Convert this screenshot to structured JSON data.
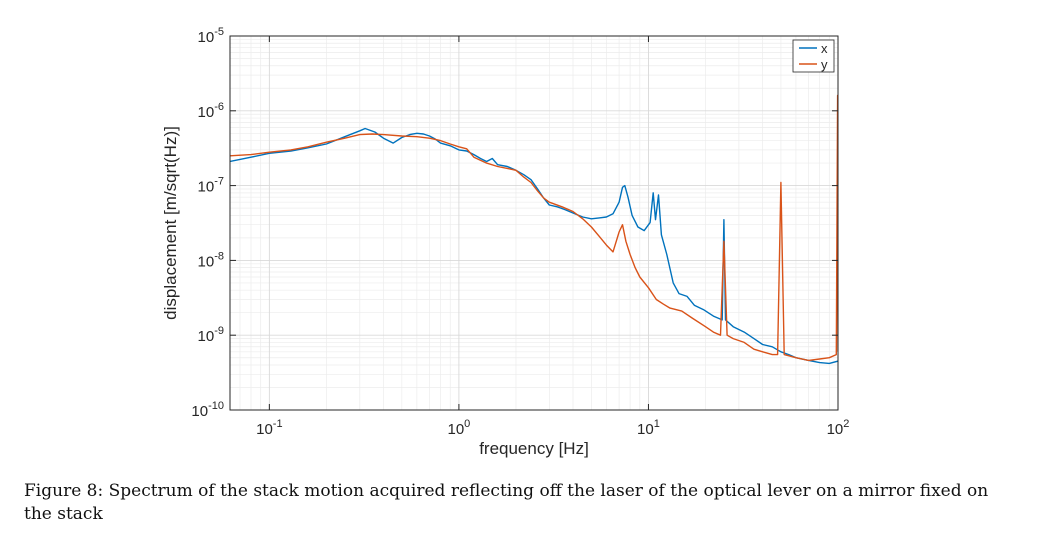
{
  "chart_data": {
    "type": "line",
    "title": "",
    "xlabel": "frequency [Hz]",
    "ylabel": "displacement [m/sqrt(Hz)]",
    "xscale": "log",
    "yscale": "log",
    "xlim": [
      0.062,
      100
    ],
    "ylim": [
      1e-10,
      1e-05
    ],
    "x_ticks": [
      0.1,
      1,
      10,
      100
    ],
    "x_tick_labels": [
      {
        "base": "10",
        "exp": "-1"
      },
      {
        "base": "10",
        "exp": "0"
      },
      {
        "base": "10",
        "exp": "1"
      },
      {
        "base": "10",
        "exp": "2"
      }
    ],
    "y_ticks": [
      1e-10,
      1e-09,
      1e-08,
      1e-07,
      1e-06,
      1e-05
    ],
    "y_tick_labels": [
      {
        "base": "10",
        "exp": "-10"
      },
      {
        "base": "10",
        "exp": "-9"
      },
      {
        "base": "10",
        "exp": "-8"
      },
      {
        "base": "10",
        "exp": "-7"
      },
      {
        "base": "10",
        "exp": "-6"
      },
      {
        "base": "10",
        "exp": "-5"
      }
    ],
    "grid": true,
    "legend_position": "top-right",
    "series": [
      {
        "name": "x",
        "color": "#0072BD",
        "points": [
          [
            0.062,
            2.1e-07
          ],
          [
            0.08,
            2.4e-07
          ],
          [
            0.1,
            2.7e-07
          ],
          [
            0.13,
            2.9e-07
          ],
          [
            0.16,
            3.2e-07
          ],
          [
            0.2,
            3.6e-07
          ],
          [
            0.25,
            4.5e-07
          ],
          [
            0.3,
            5.4e-07
          ],
          [
            0.32,
            5.8e-07
          ],
          [
            0.36,
            5.2e-07
          ],
          [
            0.4,
            4.3e-07
          ],
          [
            0.45,
            3.7e-07
          ],
          [
            0.5,
            4.4e-07
          ],
          [
            0.55,
            4.8e-07
          ],
          [
            0.6,
            5e-07
          ],
          [
            0.65,
            4.9e-07
          ],
          [
            0.7,
            4.6e-07
          ],
          [
            0.75,
            4.2e-07
          ],
          [
            0.8,
            3.7e-07
          ],
          [
            0.9,
            3.4e-07
          ],
          [
            1.0,
            3e-07
          ],
          [
            1.1,
            2.9e-07
          ],
          [
            1.2,
            2.6e-07
          ],
          [
            1.3,
            2.3e-07
          ],
          [
            1.4,
            2.1e-07
          ],
          [
            1.5,
            2.3e-07
          ],
          [
            1.6,
            1.9e-07
          ],
          [
            1.8,
            1.8e-07
          ],
          [
            2.0,
            1.6e-07
          ],
          [
            2.2,
            1.4e-07
          ],
          [
            2.4,
            1.2e-07
          ],
          [
            2.6,
            9e-08
          ],
          [
            2.8,
            6.8e-08
          ],
          [
            3.0,
            5.5e-08
          ],
          [
            3.3,
            5.2e-08
          ],
          [
            3.6,
            4.8e-08
          ],
          [
            4.0,
            4.3e-08
          ],
          [
            4.5,
            3.8e-08
          ],
          [
            5.0,
            3.6e-08
          ],
          [
            5.5,
            3.7e-08
          ],
          [
            6.0,
            3.8e-08
          ],
          [
            6.5,
            4.2e-08
          ],
          [
            7.0,
            6e-08
          ],
          [
            7.3,
            9.5e-08
          ],
          [
            7.5,
            1e-07
          ],
          [
            7.8,
            7e-08
          ],
          [
            8.2,
            4e-08
          ],
          [
            8.8,
            2.8e-08
          ],
          [
            9.5,
            2.5e-08
          ],
          [
            10.2,
            3.2e-08
          ],
          [
            10.6,
            8e-08
          ],
          [
            10.9,
            3.5e-08
          ],
          [
            11.3,
            7.5e-08
          ],
          [
            11.7,
            2.2e-08
          ],
          [
            12.5,
            1.2e-08
          ],
          [
            13.5,
            5e-09
          ],
          [
            14.5,
            3.6e-09
          ],
          [
            16,
            3.3e-09
          ],
          [
            17.5,
            2.5e-09
          ],
          [
            19.5,
            2.2e-09
          ],
          [
            22,
            1.8e-09
          ],
          [
            24.5,
            1.6e-09
          ],
          [
            25,
            3.5e-08
          ],
          [
            25.5,
            1.6e-09
          ],
          [
            28,
            1.3e-09
          ],
          [
            32,
            1.1e-09
          ],
          [
            36,
            9e-10
          ],
          [
            40,
            7.5e-10
          ],
          [
            45,
            7e-10
          ],
          [
            50,
            6e-10
          ],
          [
            55,
            5.5e-10
          ],
          [
            60,
            5e-10
          ],
          [
            70,
            4.6e-10
          ],
          [
            80,
            4.3e-10
          ],
          [
            90,
            4.2e-10
          ],
          [
            100,
            4.5e-10
          ]
        ]
      },
      {
        "name": "y",
        "color": "#D95319",
        "points": [
          [
            0.062,
            2.5e-07
          ],
          [
            0.08,
            2.6e-07
          ],
          [
            0.1,
            2.8e-07
          ],
          [
            0.13,
            3e-07
          ],
          [
            0.16,
            3.3e-07
          ],
          [
            0.2,
            3.8e-07
          ],
          [
            0.25,
            4.3e-07
          ],
          [
            0.3,
            4.8e-07
          ],
          [
            0.35,
            4.9e-07
          ],
          [
            0.4,
            4.8e-07
          ],
          [
            0.5,
            4.6e-07
          ],
          [
            0.6,
            4.5e-07
          ],
          [
            0.7,
            4.3e-07
          ],
          [
            0.8,
            4e-07
          ],
          [
            0.9,
            3.6e-07
          ],
          [
            1.0,
            3.3e-07
          ],
          [
            1.1,
            3.1e-07
          ],
          [
            1.2,
            2.4e-07
          ],
          [
            1.4,
            2e-07
          ],
          [
            1.6,
            1.8e-07
          ],
          [
            1.8,
            1.7e-07
          ],
          [
            2.0,
            1.6e-07
          ],
          [
            2.2,
            1.3e-07
          ],
          [
            2.4,
            1.1e-07
          ],
          [
            2.6,
            8.5e-08
          ],
          [
            2.8,
            6.8e-08
          ],
          [
            3.0,
            6e-08
          ],
          [
            3.5,
            5.2e-08
          ],
          [
            4.0,
            4.5e-08
          ],
          [
            4.5,
            3.6e-08
          ],
          [
            5.0,
            2.8e-08
          ],
          [
            5.5,
            2.1e-08
          ],
          [
            6.0,
            1.6e-08
          ],
          [
            6.5,
            1.3e-08
          ],
          [
            7.0,
            2.4e-08
          ],
          [
            7.3,
            3e-08
          ],
          [
            7.6,
            1.8e-08
          ],
          [
            8.0,
            1.2e-08
          ],
          [
            8.5,
            8e-09
          ],
          [
            9.0,
            6e-09
          ],
          [
            10,
            4.3e-09
          ],
          [
            11,
            3e-09
          ],
          [
            12,
            2.6e-09
          ],
          [
            13,
            2.3e-09
          ],
          [
            15,
            2.1e-09
          ],
          [
            17,
            1.7e-09
          ],
          [
            20,
            1.3e-09
          ],
          [
            22,
            1.1e-09
          ],
          [
            24,
            1e-09
          ],
          [
            25,
            1.8e-08
          ],
          [
            26,
            1e-09
          ],
          [
            28,
            9e-10
          ],
          [
            32,
            8e-10
          ],
          [
            36,
            6.5e-10
          ],
          [
            40,
            6e-10
          ],
          [
            45,
            5.5e-10
          ],
          [
            48,
            5.5e-10
          ],
          [
            50,
            1.1e-07
          ],
          [
            52,
            5.5e-10
          ],
          [
            60,
            5e-10
          ],
          [
            70,
            4.6e-10
          ],
          [
            80,
            4.8e-10
          ],
          [
            90,
            5e-10
          ],
          [
            98,
            5.5e-10
          ],
          [
            99.5,
            1.6e-06
          ],
          [
            100,
            6e-10
          ]
        ]
      }
    ]
  },
  "caption": "Figure 8: Spectrum of the stack motion acquired reflecting off the laser of the optical lever on a mirror fixed on the stack"
}
